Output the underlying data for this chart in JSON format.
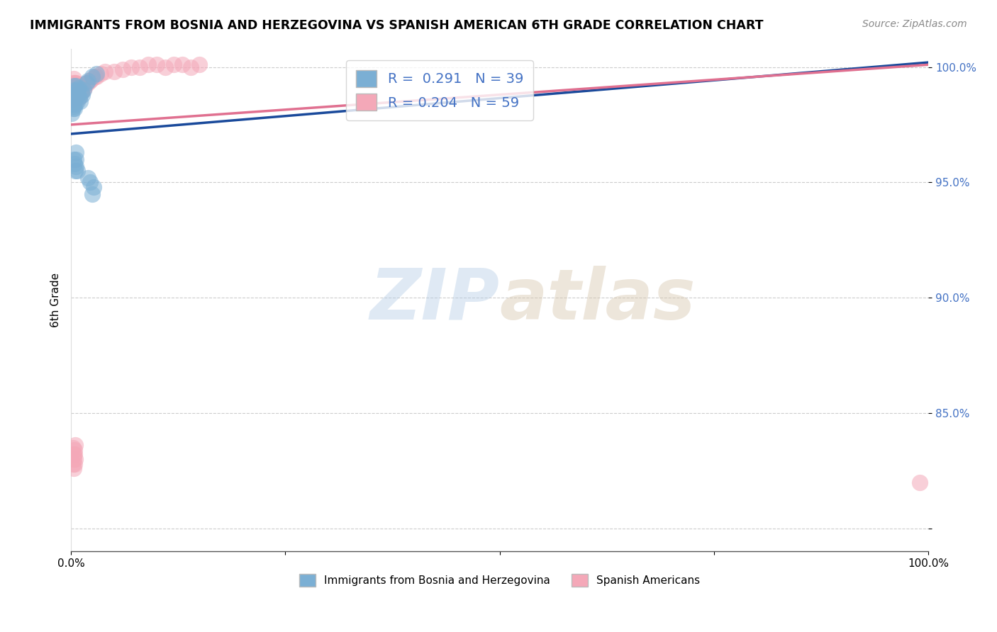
{
  "title": "IMMIGRANTS FROM BOSNIA AND HERZEGOVINA VS SPANISH AMERICAN 6TH GRADE CORRELATION CHART",
  "source": "Source: ZipAtlas.com",
  "xlabel_bottom": "Immigrants from Bosnia and Herzegovina",
  "xlabel_bottom2": "Spanish Americans",
  "ylabel": "6th Grade",
  "xlim": [
    0.0,
    1.0
  ],
  "ylim": [
    0.79,
    1.008
  ],
  "x_ticks": [
    0.0,
    0.25,
    0.5,
    0.75,
    1.0
  ],
  "x_tick_labels": [
    "0.0%",
    "",
    "",
    "",
    "100.0%"
  ],
  "y_ticks": [
    0.8,
    0.85,
    0.9,
    0.95,
    1.0
  ],
  "y_tick_labels": [
    "",
    "85.0%",
    "90.0%",
    "95.0%",
    "100.0%"
  ],
  "R_blue": 0.291,
  "N_blue": 39,
  "R_pink": 0.204,
  "N_pink": 59,
  "blue_color": "#7bafd4",
  "pink_color": "#f4a8b8",
  "blue_line_color": "#1a4a9b",
  "pink_line_color": "#e07090",
  "watermark_zip": "ZIP",
  "watermark_atlas": "atlas",
  "blue_line_x": [
    0.0,
    1.0
  ],
  "blue_line_y": [
    0.971,
    1.002
  ],
  "pink_line_x": [
    0.0,
    1.0
  ],
  "pink_line_y": [
    0.975,
    1.001
  ],
  "blue_scatter_x": [
    0.001,
    0.001,
    0.002,
    0.002,
    0.002,
    0.003,
    0.003,
    0.003,
    0.004,
    0.004,
    0.004,
    0.005,
    0.005,
    0.006,
    0.006,
    0.007,
    0.007,
    0.008,
    0.009,
    0.01,
    0.011,
    0.012,
    0.013,
    0.015,
    0.018,
    0.02,
    0.025,
    0.03,
    0.003,
    0.004,
    0.005,
    0.006,
    0.006,
    0.006,
    0.007,
    0.02,
    0.022,
    0.026,
    0.025
  ],
  "blue_scatter_y": [
    0.984,
    0.98,
    0.988,
    0.985,
    0.982,
    0.992,
    0.987,
    0.983,
    0.99,
    0.986,
    0.982,
    0.988,
    0.984,
    0.992,
    0.987,
    0.99,
    0.985,
    0.988,
    0.991,
    0.987,
    0.985,
    0.989,
    0.988,
    0.99,
    0.993,
    0.994,
    0.996,
    0.997,
    0.96,
    0.958,
    0.955,
    0.963,
    0.96,
    0.957,
    0.955,
    0.952,
    0.95,
    0.948,
    0.945
  ],
  "pink_scatter_x": [
    0.001,
    0.001,
    0.002,
    0.002,
    0.002,
    0.003,
    0.003,
    0.003,
    0.004,
    0.004,
    0.004,
    0.005,
    0.005,
    0.005,
    0.006,
    0.006,
    0.007,
    0.007,
    0.008,
    0.008,
    0.009,
    0.01,
    0.01,
    0.011,
    0.012,
    0.013,
    0.014,
    0.015,
    0.016,
    0.018,
    0.02,
    0.022,
    0.025,
    0.028,
    0.03,
    0.035,
    0.04,
    0.05,
    0.06,
    0.07,
    0.08,
    0.09,
    0.1,
    0.11,
    0.12,
    0.13,
    0.14,
    0.15,
    0.002,
    0.002,
    0.003,
    0.003,
    0.003,
    0.004,
    0.004,
    0.004,
    0.005,
    0.005,
    0.99
  ],
  "pink_scatter_y": [
    0.99,
    0.986,
    0.993,
    0.989,
    0.985,
    0.995,
    0.991,
    0.987,
    0.993,
    0.989,
    0.985,
    0.993,
    0.989,
    0.985,
    0.993,
    0.989,
    0.992,
    0.988,
    0.992,
    0.988,
    0.991,
    0.99,
    0.987,
    0.99,
    0.989,
    0.991,
    0.99,
    0.992,
    0.991,
    0.993,
    0.993,
    0.994,
    0.995,
    0.996,
    0.996,
    0.997,
    0.998,
    0.998,
    0.999,
    1.0,
    1.0,
    1.001,
    1.001,
    1.0,
    1.001,
    1.001,
    1.0,
    1.001,
    0.835,
    0.828,
    0.832,
    0.826,
    0.83,
    0.834,
    0.828,
    0.832,
    0.836,
    0.83,
    0.82
  ]
}
